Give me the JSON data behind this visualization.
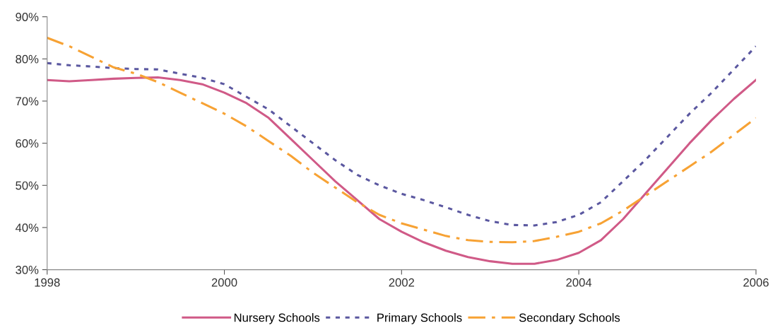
{
  "chart_data": {
    "type": "line",
    "x": [
      1998,
      1998.25,
      1998.5,
      1998.75,
      1999,
      1999.25,
      1999.5,
      1999.75,
      2000,
      2000.25,
      2000.5,
      2000.75,
      2001,
      2001.25,
      2001.5,
      2001.75,
      2002,
      2002.25,
      2002.5,
      2002.75,
      2003,
      2003.25,
      2003.5,
      2003.75,
      2004,
      2004.25,
      2004.5,
      2004.75,
      2005,
      2005.25,
      2005.5,
      2005.75,
      2006
    ],
    "series": [
      {
        "name": "Nursery Schools",
        "color": "#d05a87",
        "line_style": "solid",
        "values": [
          75,
          74.7,
          75,
          75.3,
          75.5,
          75.6,
          75,
          74,
          72,
          69.5,
          66,
          61,
          56,
          51,
          46.5,
          42,
          39,
          36.5,
          34.5,
          33,
          32,
          31.4,
          31.4,
          32.3,
          34,
          37,
          42,
          48,
          54,
          60,
          65.5,
          70.5,
          75
        ]
      },
      {
        "name": "Primary Schools",
        "color": "#5b58a0",
        "line_style": "dotted",
        "values": [
          79,
          78.5,
          78.2,
          77.8,
          77.6,
          77.5,
          76.5,
          75.5,
          74,
          71,
          68,
          64,
          60,
          56,
          52.5,
          50,
          48,
          46.5,
          44.8,
          43,
          41.5,
          40.6,
          40.5,
          41.3,
          43,
          46,
          51,
          56,
          61.5,
          67,
          72,
          77.5,
          83
        ]
      },
      {
        "name": "Secondary Schools",
        "color": "#f7a234",
        "line_style": "dashdot",
        "values": [
          85,
          83,
          80.5,
          78,
          76.5,
          74.5,
          72,
          69.5,
          67,
          64,
          60.5,
          57,
          53,
          49.5,
          46,
          43,
          41,
          39.5,
          38,
          37,
          36.6,
          36.5,
          36.8,
          37.8,
          39,
          41,
          44,
          47.5,
          51,
          54.5,
          58,
          62,
          66
        ]
      }
    ],
    "xlim": [
      1998,
      2006
    ],
    "xticks": [
      1998,
      2000,
      2002,
      2004,
      2006
    ],
    "ylim": [
      30,
      90
    ],
    "yticks": [
      {
        "value": 30,
        "label": "30%"
      },
      {
        "value": 40,
        "label": "40%"
      },
      {
        "value": 50,
        "label": "50%"
      },
      {
        "value": 60,
        "label": "60%"
      },
      {
        "value": 70,
        "label": "70%"
      },
      {
        "value": 80,
        "label": "80%"
      },
      {
        "value": 90,
        "label": "90%"
      }
    ],
    "grid": false,
    "legend": "bottom"
  }
}
